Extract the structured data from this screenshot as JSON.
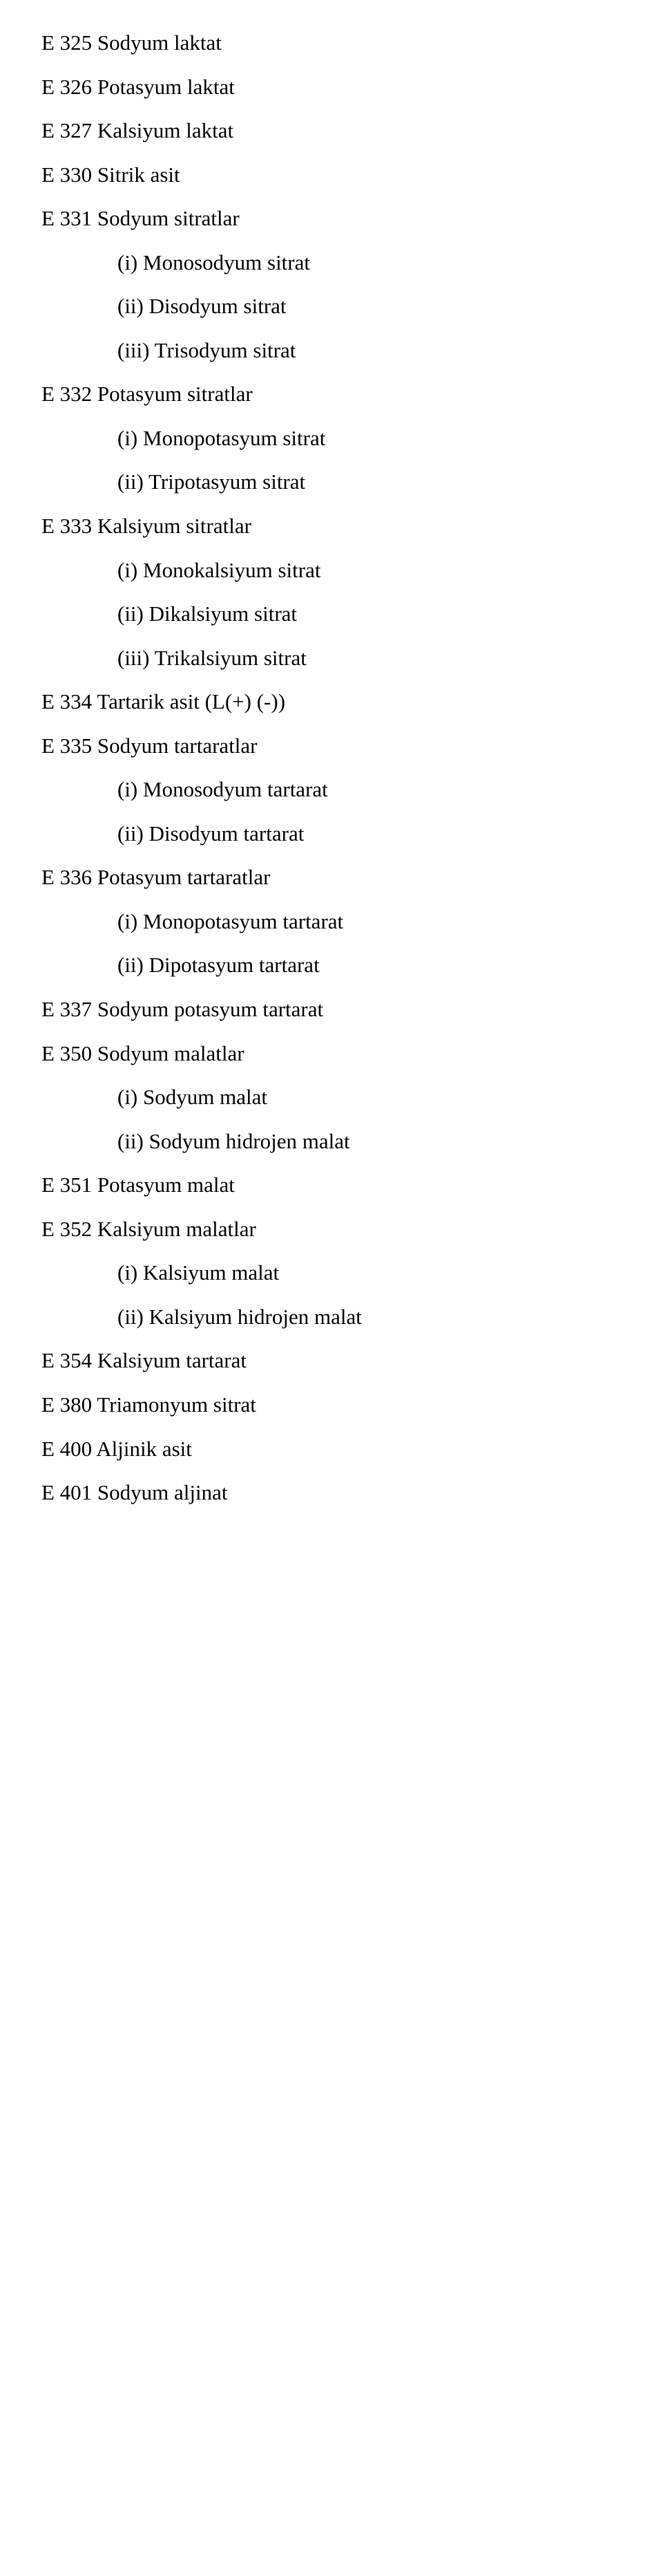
{
  "lines": [
    {
      "t": "E 325 Sodyum laktat",
      "i": false
    },
    {
      "t": "E 326 Potasyum laktat",
      "i": false
    },
    {
      "t": "E 327 Kalsiyum laktat",
      "i": false
    },
    {
      "t": "E 330 Sitrik asit",
      "i": false
    },
    {
      "t": "E 331 Sodyum sitratlar",
      "i": false
    },
    {
      "t": "(i) Monosodyum sitrat",
      "i": true
    },
    {
      "t": "(ii) Disodyum sitrat",
      "i": true
    },
    {
      "t": "(iii) Trisodyum sitrat",
      "i": true
    },
    {
      "t": "E 332 Potasyum sitratlar",
      "i": false
    },
    {
      "t": "(i) Monopotasyum sitrat",
      "i": true
    },
    {
      "t": "(ii) Tripotasyum sitrat",
      "i": true
    },
    {
      "t": "E 333 Kalsiyum sitratlar",
      "i": false
    },
    {
      "t": "(i) Monokalsiyum sitrat",
      "i": true
    },
    {
      "t": "(ii) Dikalsiyum sitrat",
      "i": true
    },
    {
      "t": "(iii) Trikalsiyum sitrat",
      "i": true
    },
    {
      "t": "E 334 Tartarik asit (L(+) (-))",
      "i": false
    },
    {
      "t": "E 335 Sodyum tartaratlar",
      "i": false
    },
    {
      "t": "(i) Monosodyum tartarat",
      "i": true
    },
    {
      "t": "(ii) Disodyum tartarat",
      "i": true
    },
    {
      "t": "E 336 Potasyum tartaratlar",
      "i": false
    },
    {
      "t": "(i) Monopotasyum tartarat",
      "i": true
    },
    {
      "t": "(ii) Dipotasyum tartarat",
      "i": true
    },
    {
      "t": "E 337 Sodyum potasyum tartarat",
      "i": false
    },
    {
      "t": "E 350 Sodyum malatlar",
      "i": false
    },
    {
      "t": "(i) Sodyum malat",
      "i": true
    },
    {
      "t": "(ii) Sodyum hidrojen malat",
      "i": true
    },
    {
      "t": "E 351 Potasyum malat",
      "i": false
    },
    {
      "t": "E 352 Kalsiyum malatlar",
      "i": false
    },
    {
      "t": "(i) Kalsiyum malat",
      "i": true
    },
    {
      "t": "(ii) Kalsiyum hidrojen malat",
      "i": true
    },
    {
      "t": "E 354 Kalsiyum tartarat",
      "i": false
    },
    {
      "t": "E 380 Triamonyum sitrat",
      "i": false
    },
    {
      "t": "E 400 Aljinik asit",
      "i": false
    },
    {
      "t": "E 401 Sodyum aljinat",
      "i": false
    }
  ]
}
